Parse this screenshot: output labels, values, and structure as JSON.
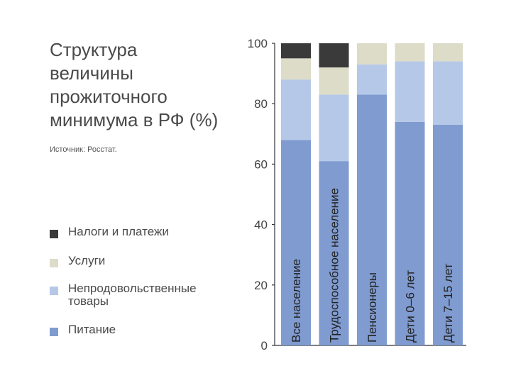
{
  "header": {
    "title_lines": [
      "Структура",
      "величины",
      "прожиточного",
      "минимума в РФ (%)"
    ],
    "source": "Источник: Росстат."
  },
  "chart_data": {
    "type": "bar",
    "stacked": true,
    "orientation": "vertical",
    "categories": [
      "Все население",
      "Трудоспособное население",
      "Пенсионеры",
      "Дети 0–6 лет",
      "Дети 7–15 лет"
    ],
    "series": [
      {
        "name": "Питание",
        "color": "#7f9bd0",
        "values": [
          68,
          61,
          83,
          74,
          73
        ]
      },
      {
        "name": "Непродовольственные товары",
        "color": "#b6c8e8",
        "values": [
          20,
          22,
          10,
          20,
          21
        ]
      },
      {
        "name": "Услуги",
        "color": "#dcdcc8",
        "values": [
          7,
          9,
          7,
          6,
          6
        ]
      },
      {
        "name": "Налоги и платежи",
        "color": "#3a3a3a",
        "values": [
          5,
          8,
          0,
          0,
          0
        ]
      }
    ],
    "legend_order": [
      "Налоги и платежи",
      "Услуги",
      "Непродовольственные товары",
      "Питание"
    ],
    "y_ticks": [
      "0",
      "20",
      "40",
      "60",
      "80",
      "100"
    ],
    "ylim": [
      0,
      100
    ],
    "grid": false,
    "legend_placement": "left"
  }
}
